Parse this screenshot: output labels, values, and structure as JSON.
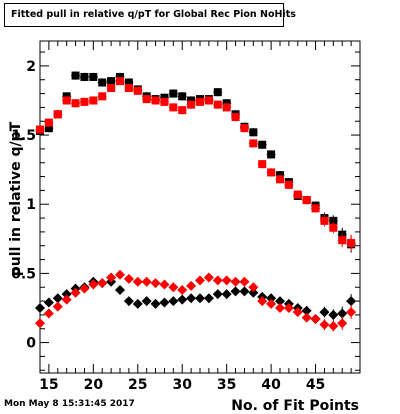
{
  "timestamp": "Mon May  8 15:31:45 2017",
  "chart_data": {
    "type": "scatter",
    "title": "Fitted pull in relative q/pT for Global Rec Pion NoHits",
    "xlabel": "No. of Fit Points",
    "ylabel": "pull in relative q/pT",
    "xlim": [
      14,
      50
    ],
    "ylim": [
      -0.22,
      2.18
    ],
    "xticks": [
      15,
      20,
      25,
      30,
      35,
      40,
      45
    ],
    "yticks": [
      0,
      0.5,
      1,
      1.5,
      2
    ],
    "ytick_labels": [
      "0",
      "0.5",
      "1",
      "1.5",
      "2"
    ],
    "grid": false,
    "series": [
      {
        "marker": "square",
        "color": "#000000",
        "x": [
          14,
          15,
          16,
          17,
          18,
          19,
          20,
          21,
          22,
          23,
          24,
          25,
          26,
          27,
          28,
          29,
          30,
          31,
          32,
          33,
          34,
          35,
          36,
          37,
          38,
          39,
          40,
          41,
          42,
          43,
          44,
          45,
          46,
          47,
          48,
          49
        ],
        "y": [
          1.53,
          1.55,
          1.65,
          1.78,
          1.93,
          1.92,
          1.92,
          1.88,
          1.89,
          1.92,
          1.88,
          1.83,
          1.78,
          1.76,
          1.77,
          1.8,
          1.78,
          1.75,
          1.76,
          1.76,
          1.81,
          1.73,
          1.65,
          1.56,
          1.52,
          1.43,
          1.36,
          1.21,
          1.16,
          1.06,
          1.03,
          0.99,
          0.9,
          0.88,
          0.78,
          0.71
        ],
        "yerr": [
          0.03,
          0.03,
          0.03,
          0.03,
          0.03,
          0.03,
          0.03,
          0.03,
          0.03,
          0.03,
          0.03,
          0.03,
          0.03,
          0.03,
          0.03,
          0.03,
          0.03,
          0.03,
          0.03,
          0.03,
          0.03,
          0.03,
          0.03,
          0.03,
          0.03,
          0.03,
          0.03,
          0.03,
          0.03,
          0.03,
          0.03,
          0.03,
          0.04,
          0.04,
          0.05,
          0.06
        ]
      },
      {
        "marker": "square",
        "color": "#ff0000",
        "x": [
          14,
          15,
          16,
          17,
          18,
          19,
          20,
          21,
          22,
          23,
          24,
          25,
          26,
          27,
          28,
          29,
          30,
          31,
          32,
          33,
          34,
          35,
          36,
          37,
          38,
          39,
          40,
          41,
          42,
          43,
          44,
          45,
          46,
          47,
          48,
          49
        ],
        "y": [
          1.54,
          1.59,
          1.65,
          1.75,
          1.73,
          1.74,
          1.75,
          1.78,
          1.84,
          1.89,
          1.84,
          1.82,
          1.76,
          1.75,
          1.74,
          1.7,
          1.68,
          1.72,
          1.74,
          1.75,
          1.72,
          1.7,
          1.63,
          1.55,
          1.44,
          1.29,
          1.23,
          1.18,
          1.14,
          1.07,
          1.03,
          0.97,
          0.88,
          0.83,
          0.74,
          0.72
        ],
        "yerr": [
          0.03,
          0.03,
          0.03,
          0.03,
          0.03,
          0.03,
          0.03,
          0.03,
          0.03,
          0.03,
          0.03,
          0.03,
          0.03,
          0.03,
          0.03,
          0.03,
          0.03,
          0.03,
          0.03,
          0.03,
          0.03,
          0.03,
          0.03,
          0.03,
          0.03,
          0.03,
          0.03,
          0.03,
          0.03,
          0.03,
          0.03,
          0.03,
          0.04,
          0.04,
          0.05,
          0.06
        ]
      },
      {
        "marker": "diamond",
        "color": "#000000",
        "x": [
          14,
          15,
          16,
          17,
          18,
          19,
          20,
          21,
          22,
          23,
          24,
          25,
          26,
          27,
          28,
          29,
          30,
          31,
          32,
          33,
          34,
          35,
          36,
          37,
          38,
          39,
          40,
          41,
          42,
          43,
          44,
          45,
          46,
          47,
          48,
          49
        ],
        "y": [
          0.25,
          0.29,
          0.32,
          0.35,
          0.39,
          0.4,
          0.44,
          0.43,
          0.44,
          0.38,
          0.3,
          0.28,
          0.3,
          0.28,
          0.29,
          0.3,
          0.31,
          0.32,
          0.32,
          0.32,
          0.35,
          0.35,
          0.37,
          0.37,
          0.36,
          0.33,
          0.32,
          0.3,
          0.28,
          0.25,
          0.23,
          0.17,
          0.22,
          0.2,
          0.21,
          0.3
        ],
        "yerr": [
          0.03,
          0.03,
          0.03,
          0.03,
          0.03,
          0.03,
          0.03,
          0.03,
          0.03,
          0.03,
          0.03,
          0.03,
          0.03,
          0.03,
          0.03,
          0.03,
          0.03,
          0.03,
          0.03,
          0.03,
          0.03,
          0.03,
          0.03,
          0.03,
          0.03,
          0.03,
          0.03,
          0.03,
          0.03,
          0.03,
          0.03,
          0.03,
          0.04,
          0.04,
          0.05,
          0.05
        ]
      },
      {
        "marker": "diamond",
        "color": "#ff0000",
        "x": [
          14,
          15,
          16,
          17,
          18,
          19,
          20,
          21,
          22,
          23,
          24,
          25,
          26,
          27,
          28,
          29,
          30,
          31,
          32,
          33,
          34,
          35,
          36,
          37,
          38,
          39,
          40,
          41,
          42,
          43,
          44,
          45,
          46,
          47,
          48,
          49
        ],
        "y": [
          0.14,
          0.21,
          0.26,
          0.31,
          0.36,
          0.39,
          0.42,
          0.43,
          0.47,
          0.49,
          0.46,
          0.44,
          0.44,
          0.43,
          0.42,
          0.4,
          0.38,
          0.41,
          0.45,
          0.47,
          0.45,
          0.45,
          0.44,
          0.44,
          0.4,
          0.3,
          0.28,
          0.25,
          0.25,
          0.22,
          0.18,
          0.17,
          0.13,
          0.12,
          0.14,
          0.22
        ],
        "yerr": [
          0.03,
          0.03,
          0.03,
          0.03,
          0.03,
          0.03,
          0.03,
          0.03,
          0.03,
          0.03,
          0.03,
          0.03,
          0.03,
          0.03,
          0.03,
          0.03,
          0.03,
          0.03,
          0.03,
          0.03,
          0.03,
          0.03,
          0.03,
          0.03,
          0.03,
          0.03,
          0.03,
          0.03,
          0.03,
          0.03,
          0.03,
          0.03,
          0.04,
          0.04,
          0.05,
          0.05
        ]
      }
    ]
  }
}
